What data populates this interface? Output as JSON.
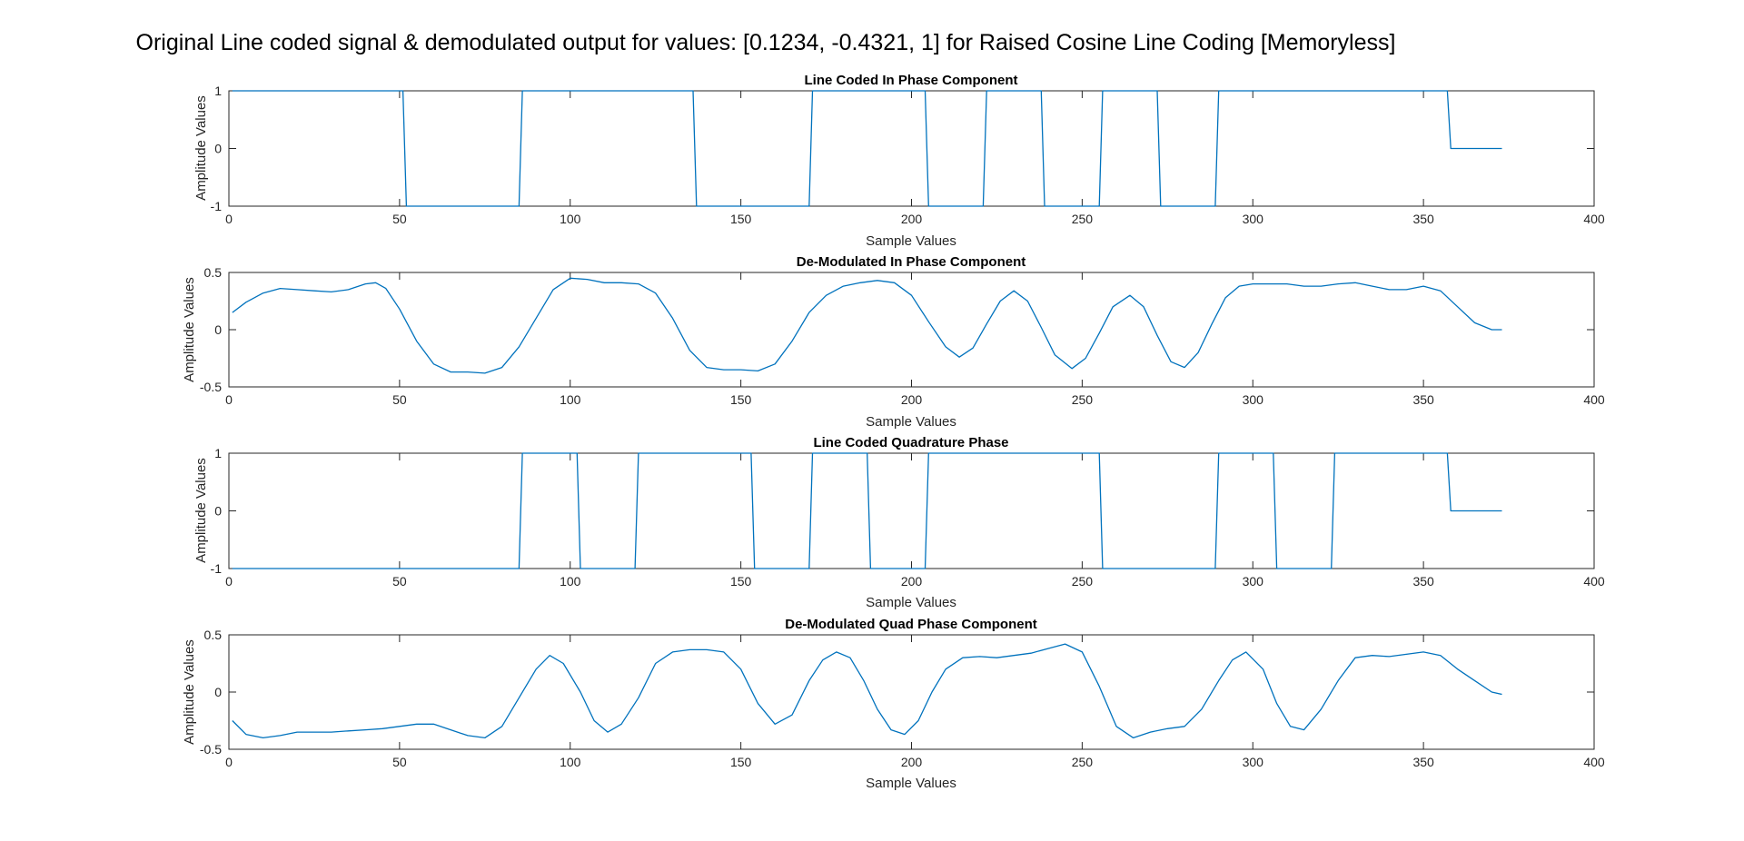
{
  "figure": {
    "suptitle": "Original Line coded signal & demodulated output for values: [0.1234, -0.4321, 1] for Raised Cosine Line Coding [Memoryless]",
    "line_color": "#0072BD"
  },
  "chart_data": [
    {
      "type": "line",
      "title": "Line Coded In Phase Component",
      "xlabel": "Sample Values",
      "ylabel": "Amplitude Values",
      "xlim": [
        0,
        400
      ],
      "ylim": [
        -1,
        1
      ],
      "xticks": [
        "0",
        "50",
        "100",
        "150",
        "200",
        "250",
        "300",
        "350",
        "400"
      ],
      "yticks": [
        "-1",
        "0",
        "1"
      ],
      "series": [
        {
          "x": [
            1,
            51,
            52,
            85,
            86,
            136,
            137,
            170,
            171,
            204,
            205,
            221,
            222,
            238,
            239,
            255,
            256,
            272,
            273,
            289,
            290,
            357,
            358,
            373
          ],
          "y": [
            1,
            1,
            -1,
            -1,
            1,
            1,
            -1,
            -1,
            1,
            1,
            -1,
            -1,
            1,
            1,
            -1,
            -1,
            1,
            1,
            -1,
            -1,
            1,
            1,
            0,
            0
          ]
        }
      ]
    },
    {
      "type": "line",
      "title": "De-Modulated In Phase Component",
      "xlabel": "Sample Values",
      "ylabel": "Amplitude Values",
      "xlim": [
        0,
        400
      ],
      "ylim": [
        -0.5,
        0.5
      ],
      "xticks": [
        "0",
        "50",
        "100",
        "150",
        "200",
        "250",
        "300",
        "350",
        "400"
      ],
      "yticks": [
        "-0.5",
        "0",
        "0.5"
      ],
      "series": [
        {
          "x": [
            1,
            5,
            10,
            15,
            20,
            25,
            30,
            35,
            40,
            43,
            46,
            50,
            55,
            60,
            65,
            70,
            75,
            80,
            85,
            90,
            95,
            100,
            105,
            110,
            115,
            120,
            125,
            130,
            135,
            140,
            145,
            150,
            155,
            160,
            165,
            170,
            175,
            180,
            185,
            190,
            195,
            200,
            205,
            210,
            214,
            218,
            222,
            226,
            230,
            234,
            238,
            242,
            247,
            251,
            255,
            259,
            264,
            268,
            272,
            276,
            280,
            284,
            288,
            292,
            296,
            300,
            305,
            310,
            315,
            320,
            325,
            330,
            335,
            340,
            345,
            350,
            355,
            360,
            365,
            370,
            373
          ],
          "y": [
            0.15,
            0.24,
            0.32,
            0.36,
            0.35,
            0.34,
            0.33,
            0.35,
            0.4,
            0.41,
            0.36,
            0.18,
            -0.1,
            -0.3,
            -0.37,
            -0.37,
            -0.38,
            -0.33,
            -0.15,
            0.1,
            0.35,
            0.45,
            0.44,
            0.41,
            0.41,
            0.4,
            0.32,
            0.1,
            -0.18,
            -0.33,
            -0.35,
            -0.35,
            -0.36,
            -0.3,
            -0.1,
            0.15,
            0.3,
            0.38,
            0.41,
            0.43,
            0.41,
            0.3,
            0.07,
            -0.15,
            -0.24,
            -0.16,
            0.05,
            0.25,
            0.34,
            0.25,
            0.02,
            -0.22,
            -0.34,
            -0.25,
            -0.03,
            0.2,
            0.3,
            0.2,
            -0.05,
            -0.28,
            -0.33,
            -0.2,
            0.05,
            0.28,
            0.38,
            0.4,
            0.4,
            0.4,
            0.38,
            0.38,
            0.4,
            0.41,
            0.38,
            0.35,
            0.35,
            0.38,
            0.34,
            0.2,
            0.06,
            0.0,
            0.0
          ]
        }
      ]
    },
    {
      "type": "line",
      "title": "Line Coded Quadrature Phase",
      "xlabel": "Sample Values",
      "ylabel": "Amplitude Values",
      "xlim": [
        0,
        400
      ],
      "ylim": [
        -1,
        1
      ],
      "xticks": [
        "0",
        "50",
        "100",
        "150",
        "200",
        "250",
        "300",
        "350",
        "400"
      ],
      "yticks": [
        "-1",
        "0",
        "1"
      ],
      "series": [
        {
          "x": [
            1,
            85,
            86,
            102,
            103,
            119,
            120,
            153,
            154,
            170,
            171,
            187,
            188,
            204,
            205,
            255,
            256,
            289,
            290,
            306,
            307,
            323,
            324,
            357,
            358,
            373
          ],
          "y": [
            -1,
            -1,
            1,
            1,
            -1,
            -1,
            1,
            1,
            -1,
            -1,
            1,
            1,
            -1,
            -1,
            1,
            1,
            -1,
            -1,
            1,
            1,
            -1,
            -1,
            1,
            1,
            0,
            0
          ]
        }
      ]
    },
    {
      "type": "line",
      "title": "De-Modulated Quad Phase Component",
      "xlabel": "Sample Values",
      "ylabel": "Amplitude Values",
      "xlim": [
        0,
        400
      ],
      "ylim": [
        -0.5,
        0.5
      ],
      "xticks": [
        "0",
        "50",
        "100",
        "150",
        "200",
        "250",
        "300",
        "350",
        "400"
      ],
      "yticks": [
        "-0.5",
        "0",
        "0.5"
      ],
      "series": [
        {
          "x": [
            1,
            5,
            10,
            15,
            20,
            25,
            30,
            35,
            40,
            45,
            50,
            55,
            60,
            65,
            70,
            75,
            80,
            85,
            90,
            94,
            98,
            103,
            107,
            111,
            115,
            120,
            125,
            130,
            135,
            140,
            145,
            150,
            155,
            160,
            165,
            170,
            174,
            178,
            182,
            186,
            190,
            194,
            198,
            202,
            206,
            210,
            215,
            220,
            225,
            230,
            235,
            240,
            245,
            250,
            255,
            260,
            265,
            270,
            275,
            280,
            285,
            290,
            294,
            298,
            303,
            307,
            311,
            315,
            320,
            325,
            330,
            335,
            340,
            345,
            350,
            355,
            360,
            365,
            370,
            373
          ],
          "y": [
            -0.25,
            -0.37,
            -0.4,
            -0.38,
            -0.35,
            -0.35,
            -0.35,
            -0.34,
            -0.33,
            -0.32,
            -0.3,
            -0.28,
            -0.28,
            -0.33,
            -0.38,
            -0.4,
            -0.3,
            -0.05,
            0.2,
            0.32,
            0.25,
            0.0,
            -0.25,
            -0.35,
            -0.28,
            -0.05,
            0.25,
            0.35,
            0.37,
            0.37,
            0.35,
            0.2,
            -0.1,
            -0.28,
            -0.2,
            0.1,
            0.28,
            0.35,
            0.3,
            0.1,
            -0.15,
            -0.33,
            -0.37,
            -0.25,
            0.0,
            0.2,
            0.3,
            0.31,
            0.3,
            0.32,
            0.34,
            0.38,
            0.42,
            0.35,
            0.05,
            -0.3,
            -0.4,
            -0.35,
            -0.32,
            -0.3,
            -0.15,
            0.1,
            0.28,
            0.35,
            0.2,
            -0.1,
            -0.3,
            -0.33,
            -0.15,
            0.1,
            0.3,
            0.32,
            0.31,
            0.33,
            0.35,
            0.32,
            0.2,
            0.1,
            0.0,
            -0.02
          ]
        }
      ]
    }
  ]
}
